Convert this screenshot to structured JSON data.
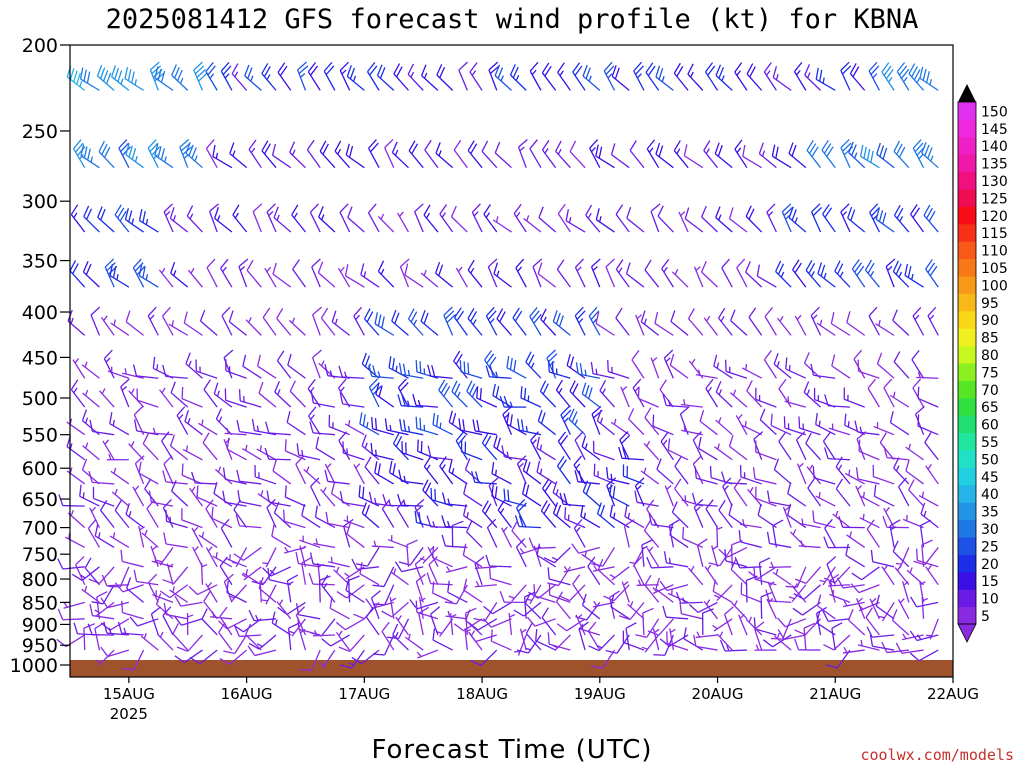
{
  "chart_data": {
    "type": "wind-barb-profile",
    "title": "2025081412 GFS forecast wind profile (kt) for KBNA",
    "xlabel": "Forecast Time (UTC)",
    "ylabel": "",
    "credit": "coolwx.com/models",
    "y_axis": {
      "scale": "pressure (hPa), inverted",
      "ylim": [
        1000,
        200
      ],
      "ticks": [
        200,
        250,
        300,
        350,
        400,
        450,
        500,
        550,
        600,
        650,
        700,
        750,
        800,
        850,
        900,
        950,
        1000
      ]
    },
    "x_axis": {
      "range": [
        "2025-08-14 12Z",
        "2025-08-22 00Z"
      ],
      "ticks": [
        {
          "label": "15AUG",
          "sub": "2025",
          "hours": 12
        },
        {
          "label": "16AUG",
          "sub": "",
          "hours": 36
        },
        {
          "label": "17AUG",
          "sub": "",
          "hours": 60
        },
        {
          "label": "18AUG",
          "sub": "",
          "hours": 84
        },
        {
          "label": "19AUG",
          "sub": "",
          "hours": 108
        },
        {
          "label": "20AUG",
          "sub": "",
          "hours": 132
        },
        {
          "label": "21AUG",
          "sub": "",
          "hours": 156
        },
        {
          "label": "22AUG",
          "sub": "",
          "hours": 180
        }
      ],
      "forecast_hours_max": 180,
      "interval_hours": 3
    },
    "levels": [
      225,
      275,
      325,
      375,
      425,
      475,
      512,
      550,
      587,
      625,
      662,
      700,
      737,
      775,
      812,
      850,
      887,
      925,
      962
    ],
    "wind_speed_kt": {
      "by_level": [
        {
          "p": 225,
          "speed_range": [
            10,
            45
          ],
          "peak_near": "day 0-1 and day 7"
        },
        {
          "p": 275,
          "speed_range": [
            5,
            40
          ]
        },
        {
          "p": 325,
          "speed_range": [
            5,
            35
          ]
        },
        {
          "p": 375,
          "speed_range": [
            5,
            30
          ]
        },
        {
          "p": 425,
          "speed_range": [
            5,
            25
          ]
        },
        {
          "p": 475,
          "speed_range": [
            5,
            25
          ]
        },
        {
          "p": 550,
          "speed_range": [
            5,
            30
          ]
        },
        {
          "p": 600,
          "speed_range": [
            5,
            25
          ]
        },
        {
          "p": 700,
          "speed_range": [
            5,
            20
          ]
        },
        {
          "p": 850,
          "speed_range": [
            5,
            15
          ]
        },
        {
          "p": 950,
          "speed_range": [
            5,
            10
          ]
        }
      ]
    },
    "ground": {
      "color": "#a0522d",
      "near_pressure_hPa": 1000
    },
    "colorbar": {
      "unit": "kt",
      "ticks": [
        5,
        10,
        15,
        20,
        25,
        30,
        35,
        40,
        45,
        50,
        55,
        60,
        65,
        70,
        75,
        80,
        85,
        90,
        95,
        100,
        105,
        110,
        115,
        120,
        125,
        130,
        135,
        140,
        145,
        150
      ],
      "colors": [
        "#8a2be2",
        "#6a1ce6",
        "#3a0fe6",
        "#1b2ee8",
        "#1e52e6",
        "#1f78e6",
        "#2294e6",
        "#25b4e6",
        "#22cfe0",
        "#20e0c8",
        "#20e6a0",
        "#22e070",
        "#30e040",
        "#58e624",
        "#8cf020",
        "#c6f820",
        "#f0f020",
        "#f8d818",
        "#f8b818",
        "#f89818",
        "#f87818",
        "#f85818",
        "#f83018",
        "#f80c18",
        "#f00c50",
        "#f01080",
        "#f018a8",
        "#f020c8",
        "#f028e0",
        "#e030f0"
      ]
    }
  }
}
